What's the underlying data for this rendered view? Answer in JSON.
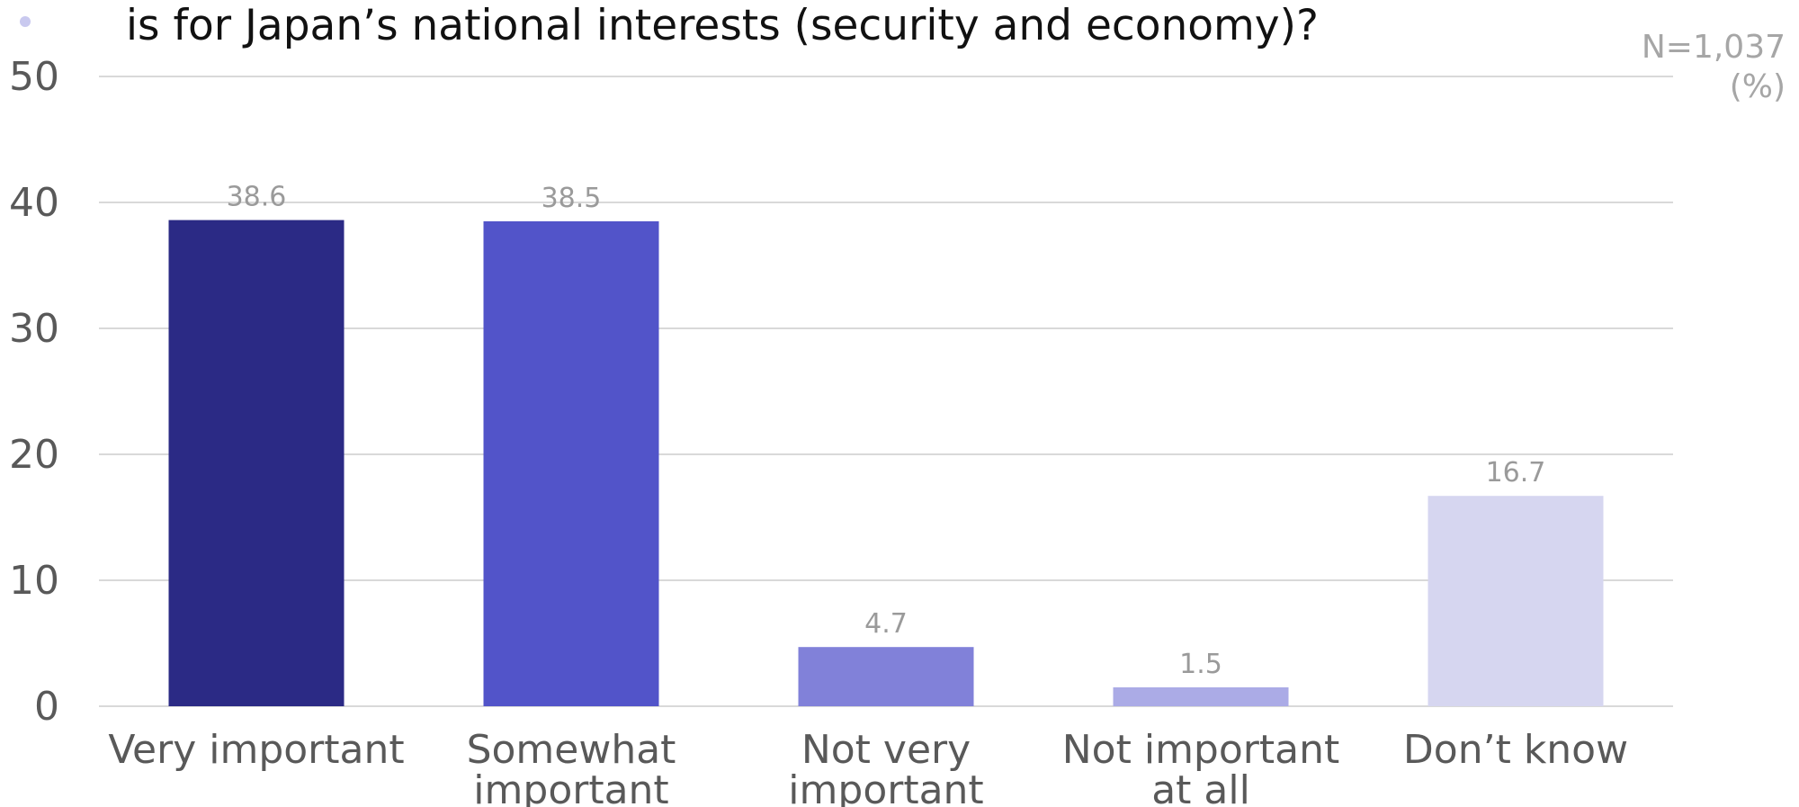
{
  "chart_data": {
    "type": "bar",
    "title": "is for Japan’s national interests (security and economy)?",
    "sample_note": "N=1,037",
    "unit_note": "(%)",
    "categories": [
      [
        "Very important"
      ],
      [
        "Somewhat",
        "important"
      ],
      [
        "Not very",
        "important"
      ],
      [
        "Not important",
        "at all"
      ],
      [
        "Don’t know"
      ]
    ],
    "values": [
      38.6,
      38.5,
      4.7,
      1.5,
      16.7
    ],
    "value_labels": [
      "38.6",
      "38.5",
      "4.7",
      "1.5",
      "16.7"
    ],
    "colors": [
      "#2b2a85",
      "#5254c9",
      "#8181d9",
      "#ababe6",
      "#d6d6f0"
    ],
    "yticks": [
      "0",
      "10",
      "20",
      "30",
      "40",
      "50"
    ],
    "ylim": [
      0,
      50
    ],
    "grid": true,
    "xlabel": "",
    "ylabel": ""
  }
}
